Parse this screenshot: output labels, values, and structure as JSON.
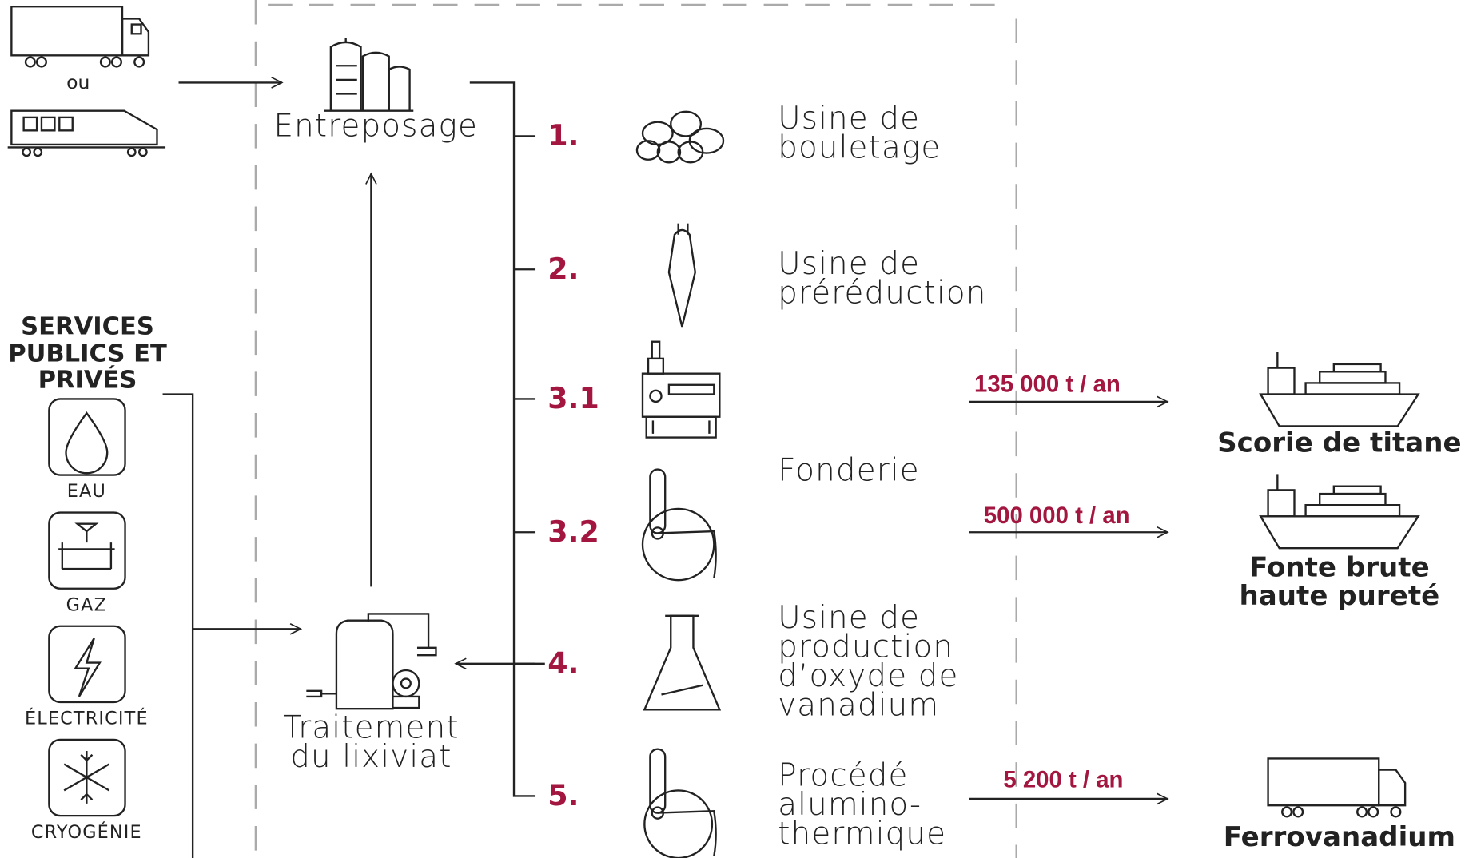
{
  "transport": {
    "or": "ou"
  },
  "storage": {
    "label": "Entreposage"
  },
  "services": {
    "title": [
      "SERVICES",
      "PUBLICS ET",
      "PRIVÉS"
    ],
    "items": [
      "EAU",
      "GAZ",
      "ÉLECTRICITÉ",
      "CRYOGÉNIE"
    ]
  },
  "treatment": {
    "label": [
      "Traitement",
      "du lixiviat"
    ]
  },
  "steps": [
    "1.",
    "2.",
    "3.1",
    "3.2",
    "4.",
    "5."
  ],
  "plants": [
    [
      "Usine de",
      "bouletage"
    ],
    [
      "Usine de",
      "préréduction"
    ],
    [
      "Fonderie"
    ],
    [
      "Usine de",
      "production",
      "d’oxyde de",
      "vanadium"
    ],
    [
      "Procédé",
      "alumino-",
      "thermique"
    ]
  ],
  "outputs": [
    {
      "flow": "135 000 t / an",
      "product": [
        "Scorie de titane"
      ]
    },
    {
      "flow": "500 000 t / an",
      "product": [
        "Fonte brute",
        "haute pureté"
      ]
    },
    {
      "flow": "5 200 t / an",
      "product": [
        "Ferrovanadium"
      ]
    }
  ]
}
